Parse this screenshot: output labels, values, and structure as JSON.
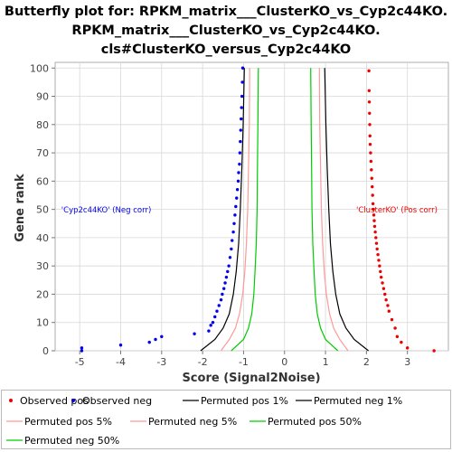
{
  "chart_data": {
    "type": "scatter",
    "title": [
      "Butterfly plot for: RPKM_matrix___ClusterKO_vs_Cyp2c44KO.",
      "RPKM_matrix___ClusterKO_vs_Cyp2c44KO.",
      "cls#ClusterKO_versus_Cyp2c44KO"
    ],
    "xlabel": "Score (Signal2Noise)",
    "ylabel": "Gene rank",
    "xlim": [
      -5.6,
      4.0
    ],
    "ylim": [
      0,
      102
    ],
    "x_ticks": [
      -5,
      -4,
      -3,
      -2,
      -1,
      0,
      1,
      2,
      3
    ],
    "y_ticks": [
      0,
      10,
      20,
      30,
      40,
      50,
      60,
      70,
      80,
      90,
      100
    ],
    "grid": true,
    "annotations": [
      {
        "text": "'Cyp2c44KO' (Neg corr)",
        "x": -5.45,
        "y": 49,
        "color": "#0000ee"
      },
      {
        "text": "'ClusterKO' (Pos corr)",
        "x": 1.75,
        "y": 49,
        "color": "#ee0000"
      }
    ],
    "series": [
      {
        "name": "Observed pos",
        "kind": "points",
        "color": "#ee0000",
        "x": [
          3.65,
          3.0,
          2.85,
          2.75,
          2.7,
          2.62,
          2.55,
          2.52,
          2.48,
          2.45,
          2.42,
          2.39,
          2.36,
          2.34,
          2.32,
          2.3,
          2.28,
          2.26,
          2.245,
          2.23,
          2.215,
          2.2,
          2.19,
          2.18,
          2.17,
          2.16,
          2.15,
          2.14,
          2.13,
          2.12,
          2.11,
          2.1,
          2.09,
          2.085,
          2.08,
          2.075,
          2.07,
          2.065,
          2.06
        ],
        "y": [
          0,
          1,
          3,
          5,
          8,
          11,
          14,
          16,
          18,
          20,
          22,
          24,
          26,
          28,
          30,
          32,
          34,
          36,
          38,
          40,
          42,
          44,
          46,
          48,
          50,
          52,
          55,
          58,
          61,
          64,
          67,
          70,
          73,
          76,
          80,
          84,
          88,
          92,
          99
        ]
      },
      {
        "name": "Observed neg",
        "kind": "points",
        "color": "#0000ee",
        "x": [
          -4.95,
          -4.95,
          -4.0,
          -3.3,
          -3.15,
          -3.0,
          -2.2,
          -1.85,
          -1.8,
          -1.75,
          -1.7,
          -1.65,
          -1.6,
          -1.55,
          -1.52,
          -1.48,
          -1.45,
          -1.42,
          -1.39,
          -1.36,
          -1.33,
          -1.3,
          -1.28,
          -1.25,
          -1.23,
          -1.21,
          -1.19,
          -1.17,
          -1.15,
          -1.13,
          -1.12,
          -1.1,
          -1.09,
          -1.08,
          -1.07,
          -1.06,
          -1.05,
          -1.04,
          -1.03,
          -1.02
        ],
        "y": [
          0,
          1,
          2,
          3,
          4,
          5,
          6,
          7,
          9,
          10,
          12,
          14,
          16,
          18,
          20,
          22,
          24,
          26,
          28,
          30,
          33,
          36,
          39,
          42,
          45,
          48,
          51,
          54,
          57,
          60,
          63,
          66,
          70,
          74,
          78,
          82,
          86,
          90,
          95,
          100
        ]
      },
      {
        "name": "Permuted pos 1%",
        "kind": "line",
        "color": "#000000",
        "x": [
          2.05,
          1.7,
          1.5,
          1.35,
          1.25,
          1.18,
          1.12,
          1.08,
          1.04,
          1.01,
          0.98
        ],
        "y": [
          0,
          4,
          8,
          13,
          20,
          28,
          38,
          50,
          65,
          80,
          100
        ]
      },
      {
        "name": "Permuted neg 1%",
        "kind": "line",
        "color": "#000000",
        "x": [
          -2.05,
          -1.7,
          -1.5,
          -1.35,
          -1.25,
          -1.18,
          -1.12,
          -1.08,
          -1.04,
          -1.01,
          -0.98
        ],
        "y": [
          0,
          4,
          8,
          13,
          20,
          28,
          38,
          50,
          65,
          80,
          100
        ]
      },
      {
        "name": "Permuted pos 5%",
        "kind": "line",
        "color": "#ff9999",
        "x": [
          1.55,
          1.35,
          1.2,
          1.1,
          1.02,
          0.97,
          0.93,
          0.9,
          0.88,
          0.86,
          0.85
        ],
        "y": [
          0,
          4,
          8,
          13,
          20,
          28,
          38,
          50,
          65,
          80,
          100
        ]
      },
      {
        "name": "Permuted neg 5%",
        "kind": "line",
        "color": "#ff9999",
        "x": [
          -1.55,
          -1.35,
          -1.2,
          -1.1,
          -1.02,
          -0.97,
          -0.93,
          -0.9,
          -0.88,
          -0.86,
          -0.85
        ],
        "y": [
          0,
          4,
          8,
          13,
          20,
          28,
          38,
          50,
          65,
          80,
          100
        ]
      },
      {
        "name": "Permuted pos 50%",
        "kind": "line",
        "color": "#00cc00",
        "x": [
          1.3,
          1.0,
          0.88,
          0.8,
          0.75,
          0.72,
          0.69,
          0.67,
          0.66,
          0.65,
          0.64
        ],
        "y": [
          0,
          4,
          8,
          13,
          20,
          28,
          38,
          50,
          65,
          80,
          100
        ]
      },
      {
        "name": "Permuted neg 50%",
        "kind": "line",
        "color": "#00cc00",
        "x": [
          -1.3,
          -1.0,
          -0.88,
          -0.8,
          -0.75,
          -0.72,
          -0.69,
          -0.67,
          -0.66,
          -0.65,
          -0.64
        ],
        "y": [
          0,
          4,
          8,
          13,
          20,
          28,
          38,
          50,
          65,
          80,
          100
        ]
      }
    ]
  }
}
